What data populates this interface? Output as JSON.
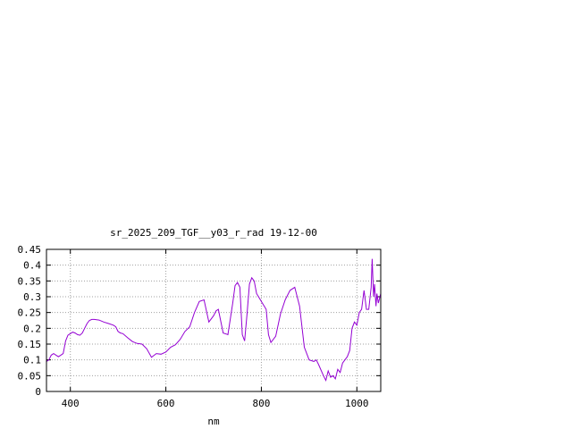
{
  "chart_data": {
    "type": "line",
    "title": "sr_2025_209_TGF__y03_r_rad 19-12-00",
    "xlabel": "nm",
    "ylabel": "",
    "xlim": [
      350,
      1050
    ],
    "ylim": [
      0,
      0.45
    ],
    "xticks": [
      400,
      600,
      800,
      1000
    ],
    "xtick_labels": [
      "400",
      "600",
      "800",
      "1000"
    ],
    "yticks": [
      0,
      0.05,
      0.1,
      0.15,
      0.2,
      0.25,
      0.3,
      0.35,
      0.4,
      0.45
    ],
    "ytick_labels": [
      "0",
      "0.05",
      "0.1",
      "0.15",
      "0.2",
      "0.25",
      "0.3",
      "0.35",
      "0.4",
      "0.45"
    ],
    "grid": true,
    "series_color": "#9400d3",
    "series": [
      {
        "x": [
          350,
          355,
          360,
          365,
          370,
          375,
          380,
          385,
          390,
          395,
          400,
          405,
          410,
          415,
          420,
          425,
          430,
          435,
          440,
          445,
          450,
          460,
          470,
          480,
          490,
          495,
          500,
          505,
          510,
          520,
          530,
          540,
          550,
          560,
          570,
          580,
          590,
          600,
          610,
          620,
          630,
          640,
          650,
          660,
          670,
          680,
          690,
          700,
          705,
          710,
          720,
          730,
          740,
          745,
          750,
          755,
          760,
          765,
          770,
          775,
          780,
          785,
          790,
          800,
          810,
          815,
          820,
          830,
          840,
          850,
          860,
          870,
          880,
          890,
          900,
          910,
          915,
          920,
          930,
          935,
          940,
          945,
          950,
          955,
          960,
          965,
          970,
          975,
          980,
          985,
          990,
          995,
          1000,
          1005,
          1010,
          1015,
          1020,
          1025,
          1030,
          1032,
          1035,
          1037,
          1040,
          1042,
          1045,
          1050
        ],
        "y": [
          0.095,
          0.1,
          0.115,
          0.12,
          0.115,
          0.11,
          0.115,
          0.12,
          0.16,
          0.178,
          0.183,
          0.188,
          0.185,
          0.18,
          0.178,
          0.185,
          0.2,
          0.215,
          0.225,
          0.228,
          0.228,
          0.226,
          0.22,
          0.215,
          0.21,
          0.205,
          0.19,
          0.185,
          0.183,
          0.17,
          0.158,
          0.152,
          0.15,
          0.135,
          0.108,
          0.12,
          0.118,
          0.125,
          0.14,
          0.148,
          0.165,
          0.19,
          0.205,
          0.25,
          0.285,
          0.29,
          0.22,
          0.24,
          0.255,
          0.26,
          0.185,
          0.18,
          0.28,
          0.335,
          0.345,
          0.33,
          0.18,
          0.16,
          0.245,
          0.34,
          0.36,
          0.35,
          0.31,
          0.285,
          0.26,
          0.18,
          0.155,
          0.175,
          0.245,
          0.29,
          0.32,
          0.33,
          0.27,
          0.14,
          0.1,
          0.095,
          0.1,
          0.085,
          0.05,
          0.035,
          0.065,
          0.045,
          0.05,
          0.04,
          0.07,
          0.06,
          0.09,
          0.1,
          0.11,
          0.13,
          0.2,
          0.22,
          0.21,
          0.25,
          0.26,
          0.32,
          0.26,
          0.26,
          0.33,
          0.42,
          0.3,
          0.34,
          0.27,
          0.31,
          0.28,
          0.31
        ]
      }
    ]
  }
}
